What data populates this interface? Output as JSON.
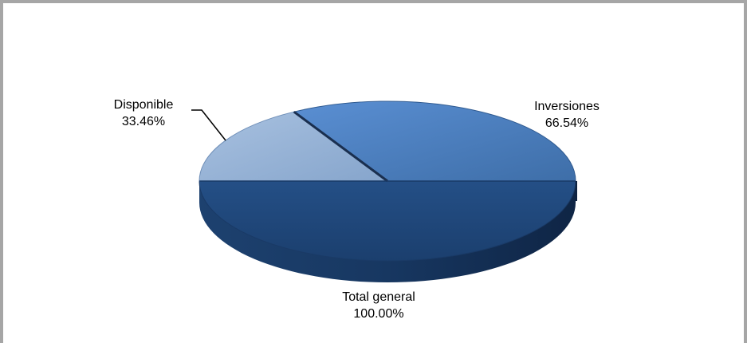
{
  "chart_data": {
    "type": "pie",
    "style": "3d",
    "slices": [
      {
        "name": "Inversiones",
        "value": 66.54,
        "value_label": "66.54%",
        "color": "#4a7ebb"
      },
      {
        "name": "Disponible",
        "value": 33.46,
        "value_label": "33.46%",
        "color": "#95b3d7"
      },
      {
        "name": "Total general",
        "value": 100.0,
        "value_label": "100.00%",
        "color": "#1f497d"
      }
    ],
    "legend": "none",
    "border_color": "#a6a6a6"
  }
}
